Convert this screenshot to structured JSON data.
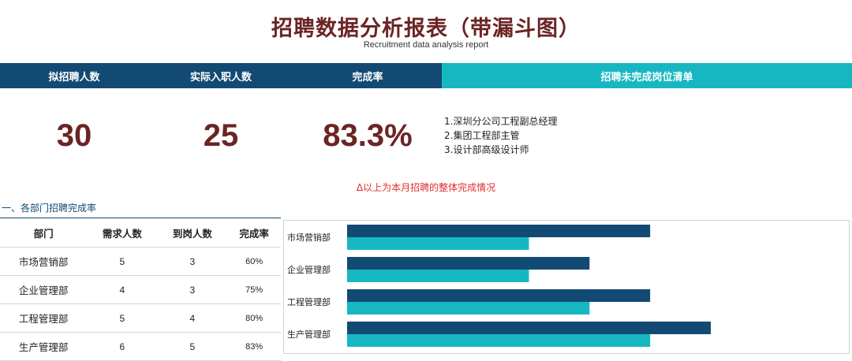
{
  "header": {
    "title": "招聘数据分析报表（带漏斗图）",
    "subtitle": "Recruitment data analysis report"
  },
  "summary": {
    "planned_label": "拟招聘人数",
    "actual_label": "实际入职人数",
    "rate_label": "完成率",
    "unfilled_label": "招聘未完成岗位清单",
    "planned_value": "30",
    "actual_value": "25",
    "rate_value": "83.3%",
    "unfilled_items": [
      "1.深圳分公司工程副总经理",
      "2.集团工程部主管",
      "3.设计部高级设计师"
    ]
  },
  "note": "Δ以上为本月招聘的整体完成情况",
  "section_title": "一、各部门招聘完成率",
  "table": {
    "columns": [
      "部门",
      "需求人数",
      "到岗人数",
      "完成率"
    ],
    "rows": [
      [
        "市场营销部",
        "5",
        "3",
        "60%"
      ],
      [
        "企业管理部",
        "4",
        "3",
        "75%"
      ],
      [
        "工程管理部",
        "5",
        "4",
        "80%"
      ],
      [
        "生产管理部",
        "6",
        "5",
        "83%"
      ]
    ]
  },
  "colors": {
    "demand": "#124a73",
    "arrived": "#17b7c2",
    "title": "#6b2424",
    "note": "#e22c2c"
  },
  "chart_data": {
    "type": "bar",
    "orientation": "horizontal",
    "categories": [
      "市场营销部",
      "企业管理部",
      "工程管理部",
      "生产管理部"
    ],
    "series": [
      {
        "values": [
          5,
          4,
          5,
          6
        ]
      },
      {
        "values": [
          3,
          3,
          4,
          5
        ]
      }
    ],
    "xlim": [
      0,
      8.2
    ],
    "grid": false,
    "legend": "none"
  }
}
